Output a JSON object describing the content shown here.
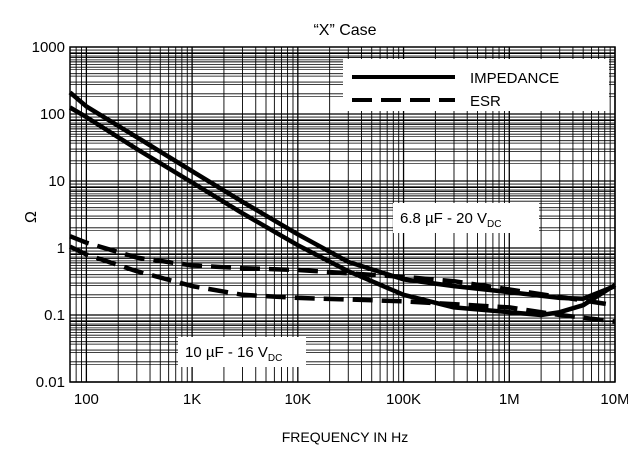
{
  "chart_data": {
    "type": "line",
    "title": "“X” Case",
    "xlabel": "FREQUENCY IN Hz",
    "ylabel": "Ω",
    "x_scale": "log",
    "y_scale": "log",
    "xlim": [
      70,
      10000000
    ],
    "ylim": [
      0.01,
      1000
    ],
    "grid": true,
    "x_ticks": [
      {
        "value": 100,
        "label": "100"
      },
      {
        "value": 1000,
        "label": "1K"
      },
      {
        "value": 10000,
        "label": "10K"
      },
      {
        "value": 100000,
        "label": "100K"
      },
      {
        "value": 1000000,
        "label": "1M"
      },
      {
        "value": 10000000,
        "label": "10M"
      }
    ],
    "y_ticks": [
      {
        "value": 0.01,
        "label": "0.01"
      },
      {
        "value": 0.1,
        "label": "0.1"
      },
      {
        "value": 1,
        "label": "1"
      },
      {
        "value": 10,
        "label": "10"
      },
      {
        "value": 100,
        "label": "100"
      },
      {
        "value": 1000,
        "label": "1000"
      }
    ],
    "legend": {
      "position": "top-right",
      "entries": [
        {
          "label": "IMPEDANCE",
          "style": "solid"
        },
        {
          "label": "ESR",
          "style": "dashed"
        }
      ]
    },
    "annotations": [
      {
        "main": "6.8 µF - 20 V",
        "sub": "DC"
      },
      {
        "main": "10 µF - 16 V",
        "sub": "DC"
      }
    ],
    "series": [
      {
        "kind": "impedance",
        "style": "solid",
        "x": [
          70,
          100,
          300,
          1000,
          3000,
          10000,
          30000,
          100000,
          300000,
          1000000,
          3000000,
          5000000,
          10000000
        ],
        "y": [
          210,
          130,
          45,
          14,
          4.9,
          1.6,
          0.62,
          0.34,
          0.27,
          0.22,
          0.18,
          0.175,
          0.27
        ]
      },
      {
        "kind": "impedance",
        "style": "solid",
        "x": [
          70,
          100,
          300,
          1000,
          3000,
          10000,
          30000,
          100000,
          300000,
          1000000,
          2000000,
          3000000,
          5000000,
          10000000
        ],
        "y": [
          125,
          90,
          30,
          9.5,
          3.3,
          1.1,
          0.45,
          0.2,
          0.13,
          0.11,
          0.1,
          0.11,
          0.14,
          0.28
        ]
      },
      {
        "kind": "esr",
        "style": "dashed",
        "x": [
          70,
          100,
          300,
          1000,
          3000,
          10000,
          100000,
          300000,
          1000000,
          10000000
        ],
        "y": [
          1.5,
          1.2,
          0.72,
          0.55,
          0.5,
          0.47,
          0.37,
          0.32,
          0.24,
          0.14
        ]
      },
      {
        "kind": "esr",
        "style": "dashed",
        "x": [
          70,
          100,
          300,
          1000,
          3000,
          10000,
          100000,
          1000000,
          3000000,
          10000000
        ],
        "y": [
          1.05,
          0.8,
          0.45,
          0.27,
          0.2,
          0.18,
          0.16,
          0.13,
          0.1,
          0.08
        ]
      }
    ]
  }
}
